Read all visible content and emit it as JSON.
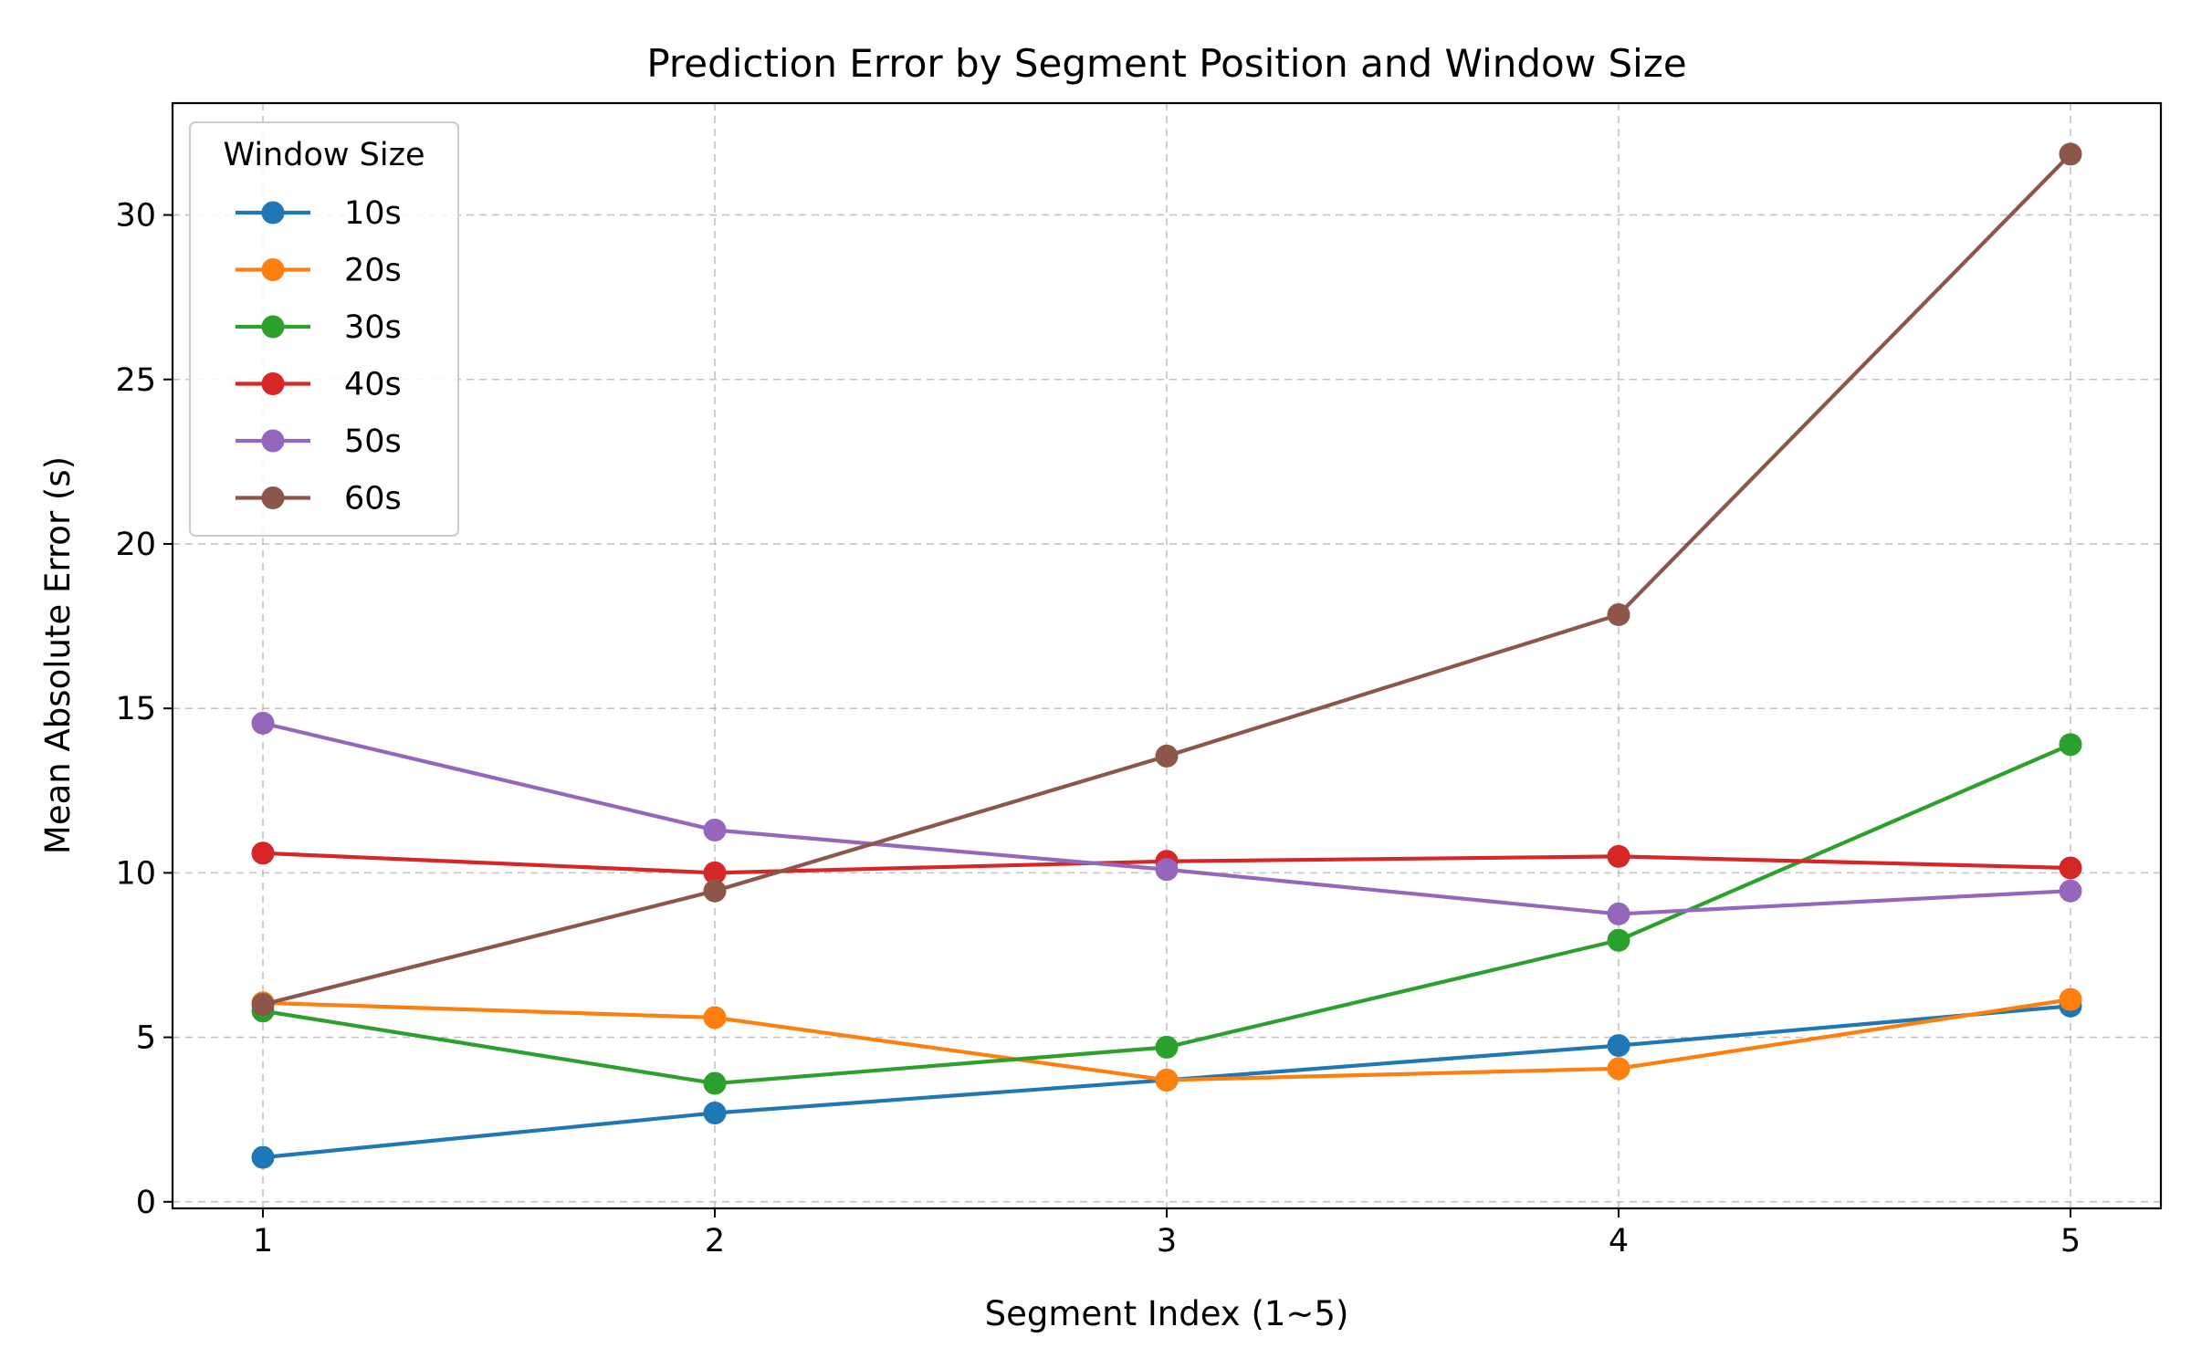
{
  "chart_data": {
    "type": "line",
    "title": "Prediction Error by Segment Position and Window Size",
    "xlabel": "Segment Index (1~5)",
    "ylabel": "Mean Absolute Error (s)",
    "x": [
      1,
      2,
      3,
      4,
      5
    ],
    "x_ticks": [
      "1",
      "2",
      "3",
      "4",
      "5"
    ],
    "y_ticks": [
      "0",
      "5",
      "10",
      "15",
      "20",
      "25",
      "30"
    ],
    "xlim": [
      0.8,
      5.2
    ],
    "ylim": [
      -0.2,
      33.4
    ],
    "grid": true,
    "legend_title": "Window Size",
    "legend_position": "upper-left",
    "series": [
      {
        "name": "10s",
        "color": "#1f77b4",
        "values": [
          1.35,
          2.7,
          3.7,
          4.75,
          5.95
        ]
      },
      {
        "name": "20s",
        "color": "#ff7f0e",
        "values": [
          6.05,
          5.6,
          3.7,
          4.05,
          6.15
        ]
      },
      {
        "name": "30s",
        "color": "#2ca02c",
        "values": [
          5.8,
          3.6,
          4.7,
          7.95,
          13.9
        ]
      },
      {
        "name": "40s",
        "color": "#d62728",
        "values": [
          10.6,
          10.0,
          10.35,
          10.5,
          10.15
        ]
      },
      {
        "name": "50s",
        "color": "#9467bd",
        "values": [
          14.55,
          11.3,
          10.1,
          8.75,
          9.45
        ]
      },
      {
        "name": "60s",
        "color": "#8c564b",
        "values": [
          6.0,
          9.45,
          13.55,
          17.85,
          31.85
        ]
      }
    ]
  }
}
